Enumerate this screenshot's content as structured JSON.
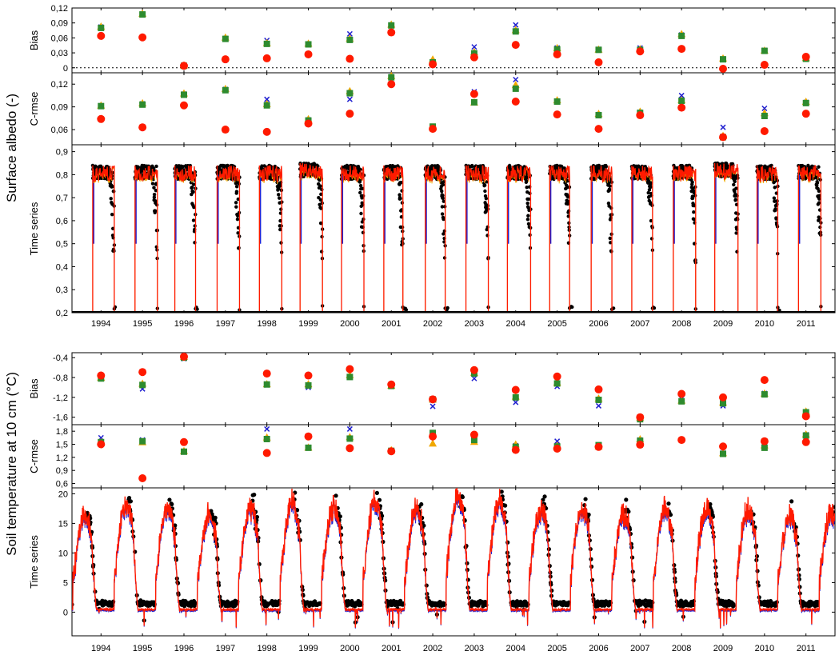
{
  "chart_data": [
    {
      "title": "Surface albedo (-)",
      "colors": {
        "obs": "#000000",
        "model_x": "#1f1fd0",
        "model_tri": "#f0a800",
        "model_sq": "#2e8b2e",
        "model_red": "#ff1a00"
      },
      "years": [
        "1994",
        "1995",
        "1996",
        "1997",
        "1998",
        "1999",
        "2000",
        "2001",
        "2002",
        "2003",
        "2004",
        "2005",
        "2006",
        "2007",
        "2008",
        "2009",
        "2010",
        "2011"
      ],
      "panels": [
        {
          "type": "scatter",
          "ylabel": "Bias",
          "ylim": [
            -0.01,
            0.12
          ],
          "yticks": [
            "0,12",
            "0,09",
            "0,06",
            "0,03",
            "0"
          ],
          "ytick_values": [
            0.12,
            0.09,
            0.06,
            0.03,
            0
          ],
          "zero_line": 0,
          "series": [
            {
              "marker": "x",
              "values": [
                0.082,
                0.108,
                0.005,
                0.059,
                0.055,
                0.048,
                0.068,
                0.086,
                0.012,
                0.042,
                0.086,
                0.04,
                0.037,
                0.04,
                0.066,
                0.018,
                0.035,
                0.02
              ]
            },
            {
              "marker": "triangle",
              "values": [
                0.083,
                0.109,
                0.005,
                0.061,
                0.05,
                0.049,
                0.059,
                0.087,
                0.017,
                0.032,
                0.076,
                0.04,
                0.037,
                0.038,
                0.068,
                0.019,
                0.035,
                0.02
              ]
            },
            {
              "marker": "square",
              "values": [
                0.08,
                0.107,
                0.004,
                0.058,
                0.048,
                0.047,
                0.056,
                0.085,
                0.011,
                0.029,
                0.073,
                0.037,
                0.036,
                0.036,
                0.064,
                0.017,
                0.034,
                0.018
              ]
            },
            {
              "marker": "circle",
              "values": [
                0.064,
                0.061,
                0.004,
                0.017,
                0.019,
                0.027,
                0.018,
                0.071,
                0.007,
                0.021,
                0.046,
                0.027,
                0.011,
                0.033,
                0.038,
                -0.002,
                0.006,
                0.022
              ]
            }
          ]
        },
        {
          "type": "scatter",
          "ylabel": "C-rmse",
          "ylim": [
            0.04,
            0.135
          ],
          "yticks": [
            "0,12",
            "0,09",
            "0,06"
          ],
          "ytick_values": [
            0.12,
            0.09,
            0.06
          ],
          "series": [
            {
              "marker": "x",
              "values": [
                0.091,
                0.094,
                0.107,
                0.113,
                0.1,
                0.073,
                0.1,
                0.13,
                0.063,
                0.11,
                0.126,
                0.097,
                0.08,
                0.083,
                0.105,
                0.063,
                0.088,
                0.096
              ]
            },
            {
              "marker": "triangle",
              "values": [
                0.092,
                0.095,
                0.108,
                0.114,
                0.094,
                0.074,
                0.111,
                0.131,
                0.063,
                0.096,
                0.119,
                0.099,
                0.081,
                0.084,
                0.099,
                0.052,
                0.082,
                0.097
              ]
            },
            {
              "marker": "square",
              "values": [
                0.091,
                0.093,
                0.106,
                0.112,
                0.092,
                0.072,
                0.108,
                0.129,
                0.064,
                0.096,
                0.114,
                0.097,
                0.079,
                0.082,
                0.098,
                0.05,
                0.078,
                0.095
              ]
            },
            {
              "marker": "circle",
              "values": [
                0.074,
                0.063,
                0.092,
                0.06,
                0.057,
                0.068,
                0.081,
                0.12,
                0.061,
                0.107,
                0.097,
                0.08,
                0.061,
                0.079,
                0.089,
                0.05,
                0.058,
                0.081
              ]
            }
          ]
        },
        {
          "type": "line",
          "ylabel": "Time series",
          "ylim": [
            0.2,
            0.93
          ],
          "yticks": [
            "0,9",
            "0,8",
            "0,7",
            "0,6",
            "0,5",
            "0,4",
            "0,3",
            "0,2"
          ],
          "ytick_values": [
            0.9,
            0.8,
            0.7,
            0.6,
            0.5,
            0.4,
            0.3,
            0.2
          ],
          "xticks": [
            "1994",
            "1995",
            "1996",
            "1997",
            "1998",
            "1999",
            "2000",
            "2001",
            "2002",
            "2003",
            "2004",
            "2005",
            "2006",
            "2007",
            "2008",
            "2009",
            "2010",
            "2011"
          ],
          "xlim": [
            1993.3,
            2011.7
          ],
          "snow_seasons": [
            {
              "start": 1993.8,
              "end": 1994.32,
              "peak": 0.84,
              "spring": 0.3
            },
            {
              "start": 1994.82,
              "end": 1995.36,
              "peak": 0.84,
              "spring": 0.3
            },
            {
              "start": 1995.78,
              "end": 1996.28,
              "peak": 0.84,
              "spring": 0.3
            },
            {
              "start": 1996.8,
              "end": 1997.34,
              "peak": 0.84,
              "spring": 0.3
            },
            {
              "start": 1997.82,
              "end": 1998.36,
              "peak": 0.84,
              "spring": 0.3
            },
            {
              "start": 1998.8,
              "end": 1999.34,
              "peak": 0.85,
              "spring": 0.3
            },
            {
              "start": 1999.8,
              "end": 2000.34,
              "peak": 0.84,
              "spring": 0.3
            },
            {
              "start": 2000.82,
              "end": 2001.28,
              "peak": 0.84,
              "spring": 0.3
            },
            {
              "start": 2001.82,
              "end": 2002.3,
              "peak": 0.84,
              "spring": 0.3
            },
            {
              "start": 2002.8,
              "end": 2003.34,
              "peak": 0.84,
              "spring": 0.3
            },
            {
              "start": 2003.8,
              "end": 2004.36,
              "peak": 0.84,
              "spring": 0.3
            },
            {
              "start": 2004.82,
              "end": 2005.3,
              "peak": 0.84,
              "spring": 0.3
            },
            {
              "start": 2005.82,
              "end": 2006.32,
              "peak": 0.84,
              "spring": 0.3
            },
            {
              "start": 2006.8,
              "end": 2007.3,
              "peak": 0.84,
              "spring": 0.3
            },
            {
              "start": 2007.8,
              "end": 2008.34,
              "peak": 0.84,
              "spring": 0.3
            },
            {
              "start": 2008.8,
              "end": 2009.36,
              "peak": 0.85,
              "spring": 0.3
            },
            {
              "start": 2009.82,
              "end": 2010.32,
              "peak": 0.84,
              "spring": 0.3
            },
            {
              "start": 2010.82,
              "end": 2011.36,
              "peak": 0.84,
              "spring": 0.3
            }
          ],
          "baseline": 0.2
        }
      ]
    },
    {
      "title": "Soil temperature at 10 cm (°C)",
      "colors": {
        "obs": "#000000",
        "model_x": "#1f1fd0",
        "model_tri": "#f0a800",
        "model_sq": "#2e8b2e",
        "model_red": "#ff1a00"
      },
      "panels": [
        {
          "type": "scatter",
          "ylabel": "Bias",
          "ylim": [
            -1.75,
            -0.3
          ],
          "inverted": true,
          "yticks": [
            "-0,4",
            "-0,8",
            "-1,2",
            "-1,6"
          ],
          "ytick_values": [
            -0.4,
            -0.8,
            -1.2,
            -1.6
          ],
          "series": [
            {
              "marker": "x",
              "values": [
                -0.78,
                -1.03,
                -0.42,
                null,
                -0.95,
                -1.0,
                -0.78,
                -0.97,
                -1.38,
                -0.82,
                -1.3,
                -0.98,
                -1.37,
                -1.62,
                -1.23,
                -1.37,
                -1.12,
                -1.5
              ]
            },
            {
              "marker": "triangle",
              "values": [
                -0.8,
                -0.92,
                -0.38,
                null,
                -0.93,
                -0.93,
                -0.75,
                -0.96,
                -1.24,
                -0.7,
                -1.18,
                -0.9,
                -1.22,
                -1.6,
                -1.26,
                -1.3,
                -1.12,
                -1.48
              ]
            },
            {
              "marker": "square",
              "values": [
                -0.82,
                -0.95,
                -0.4,
                null,
                -0.94,
                -0.96,
                -0.79,
                -0.97,
                -1.24,
                -0.72,
                -1.2,
                -0.92,
                -1.25,
                -1.64,
                -1.28,
                -1.32,
                -1.14,
                -1.5
              ]
            },
            {
              "marker": "circle",
              "values": [
                -0.76,
                -0.69,
                -0.38,
                null,
                -0.72,
                -0.76,
                -0.63,
                -0.94,
                -1.24,
                -0.65,
                -1.05,
                -0.78,
                -1.04,
                -1.6,
                -1.13,
                -1.2,
                -0.85,
                -1.58
              ]
            }
          ]
        },
        {
          "type": "scatter",
          "ylabel": "C-rmse",
          "ylim": [
            0.5,
            1.95
          ],
          "yticks": [
            "1,8",
            "1,5",
            "1,2",
            "0,9",
            "0,6"
          ],
          "ytick_values": [
            1.8,
            1.5,
            1.2,
            0.9,
            0.6
          ],
          "series": [
            {
              "marker": "x",
              "values": [
                1.65,
                1.6,
                1.33,
                null,
                1.85,
                1.43,
                1.85,
                1.35,
                1.68,
                1.58,
                1.47,
                1.57,
                1.47,
                1.6,
                null,
                1.3,
                1.45,
                1.72
              ]
            },
            {
              "marker": "triangle",
              "values": [
                1.55,
                1.55,
                1.35,
                null,
                1.66,
                1.43,
                1.67,
                1.37,
                1.52,
                1.56,
                1.5,
                1.47,
                1.45,
                1.62,
                null,
                1.3,
                1.48,
                1.73
              ]
            },
            {
              "marker": "square",
              "values": [
                1.55,
                1.57,
                1.33,
                null,
                1.62,
                1.42,
                1.63,
                1.35,
                1.76,
                1.6,
                1.44,
                1.45,
                1.48,
                1.58,
                null,
                1.28,
                1.42,
                1.7
              ]
            },
            {
              "marker": "circle",
              "values": [
                1.5,
                0.72,
                1.55,
                null,
                1.3,
                1.68,
                1.41,
                1.34,
                1.68,
                1.72,
                1.37,
                1.4,
                1.44,
                1.49,
                1.6,
                1.45,
                1.57,
                1.55
              ]
            }
          ]
        },
        {
          "type": "line",
          "ylabel": "Time series",
          "ylim": [
            -4,
            21
          ],
          "yticks": [
            "20",
            "15",
            "10",
            "5",
            "0"
          ],
          "ytick_values": [
            20,
            15,
            10,
            5,
            0
          ],
          "xticks": [
            "1994",
            "1995",
            "1996",
            "1997",
            "1998",
            "1999",
            "2000",
            "2001",
            "2002",
            "2003",
            "2004",
            "2005",
            "2006",
            "2007",
            "2008",
            "2009",
            "2010",
            "2011"
          ],
          "xlim": [
            1993.3,
            2011.7
          ],
          "summer_peaks": [
            18,
            20,
            19,
            18,
            19,
            20,
            19,
            20,
            19,
            21,
            20,
            19,
            19,
            18,
            19,
            19,
            19,
            18
          ],
          "winter_level": 0.3
        }
      ]
    }
  ]
}
